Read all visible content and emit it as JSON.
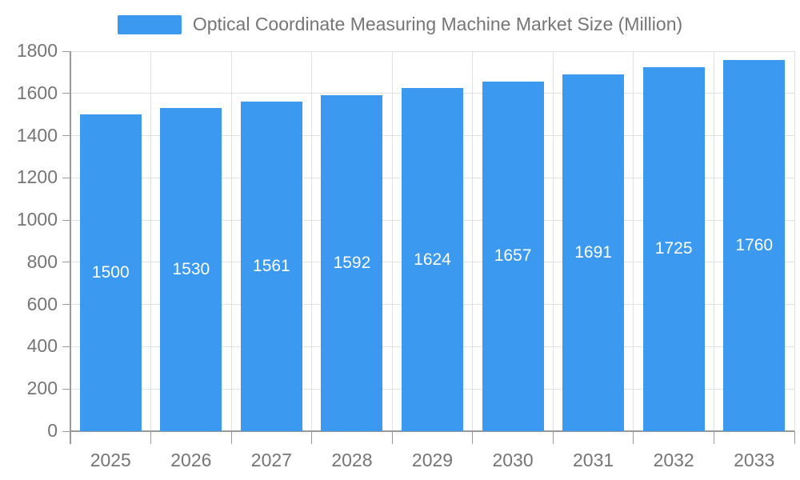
{
  "chart_data": {
    "type": "bar",
    "title": "Optical Coordinate Measuring Machine Market Size (Million)",
    "legend_position": "top",
    "categories": [
      "2025",
      "2026",
      "2027",
      "2028",
      "2029",
      "2030",
      "2031",
      "2032",
      "2033"
    ],
    "values": [
      1500,
      1530,
      1561,
      1592,
      1624,
      1657,
      1691,
      1725,
      1760
    ],
    "value_labels": [
      "1500",
      "1530",
      "1561",
      "1592",
      "1624",
      "1657",
      "1691",
      "1725",
      "1760"
    ],
    "xlabel": "",
    "ylabel": "",
    "ylim": [
      0,
      1800
    ],
    "ytick_step": 200,
    "ytick_labels": [
      "0",
      "200",
      "400",
      "600",
      "800",
      "1000",
      "1200",
      "1400",
      "1600",
      "1800"
    ],
    "grid": true,
    "colors": {
      "bar": "#3b99f0",
      "grid": "#e0e0e0",
      "axis": "#999999",
      "tick_text": "#757575",
      "legend_text": "#757575",
      "value_label_text": "#ffffff",
      "background": "#ffffff"
    }
  }
}
